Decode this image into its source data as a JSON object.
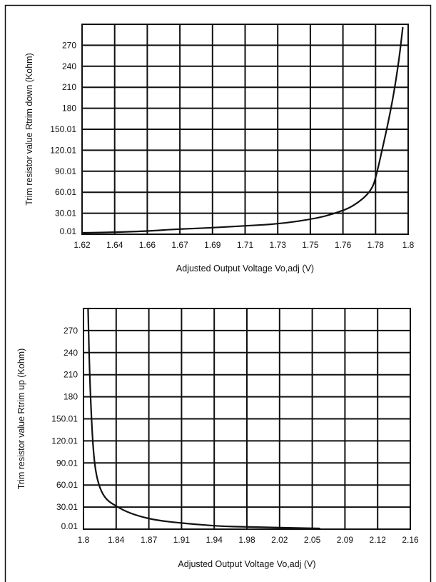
{
  "chart_data": [
    {
      "type": "line",
      "title": "",
      "xlabel": "Adjusted Output Voltage Vo,adj (V)",
      "ylabel": "Trim resistor value Rtrim down (Kohm)",
      "x_ticks": [
        "1.62",
        "1.64",
        "1.66",
        "1.67",
        "1.69",
        "1.71",
        "1.73",
        "1.75",
        "1.76",
        "1.78",
        "1.8"
      ],
      "y_ticks": [
        "0.01",
        "30.01",
        "60.01",
        "90.01",
        "120.01",
        "150.01",
        "180",
        "210",
        "240",
        "270"
      ],
      "xlim": [
        1.62,
        1.8
      ],
      "ylim": [
        0,
        300
      ],
      "grid": true,
      "series": [
        {
          "x": [
            1.62,
            1.64,
            1.66,
            1.67,
            1.69,
            1.71,
            1.73,
            1.75,
            1.76,
            1.77,
            1.78,
            1.783,
            1.786,
            1.789,
            1.792,
            1.795,
            1.797
          ],
          "y": [
            2,
            3,
            5,
            7,
            9,
            12,
            15,
            23,
            30,
            40,
            62,
            90,
            125,
            160,
            200,
            250,
            295
          ]
        }
      ]
    },
    {
      "type": "line",
      "title": "",
      "xlabel": "Adjusted Output Voltage Vo,adj (V)",
      "ylabel": "Trim resistor value Rtrim up (Kohm)",
      "x_ticks": [
        "1.8",
        "1.84",
        "1.87",
        "1.91",
        "1.94",
        "1.98",
        "2.02",
        "2.05",
        "2.09",
        "2.12",
        "2.16"
      ],
      "y_ticks": [
        "0.01",
        "30.01",
        "60.01",
        "90.01",
        "120.01",
        "150.01",
        "180",
        "210",
        "240",
        "270"
      ],
      "xlim": [
        1.8,
        2.16
      ],
      "ylim": [
        0,
        300
      ],
      "grid": true,
      "series": [
        {
          "x": [
            1.805,
            1.807,
            1.81,
            1.813,
            1.818,
            1.825,
            1.835,
            1.845,
            1.86,
            1.88,
            1.91,
            1.95,
            1.98,
            2.02,
            2.06
          ],
          "y": [
            300,
            200,
            120,
            80,
            55,
            40,
            32,
            25,
            18,
            12,
            8,
            4,
            3,
            2,
            1
          ]
        }
      ]
    }
  ]
}
